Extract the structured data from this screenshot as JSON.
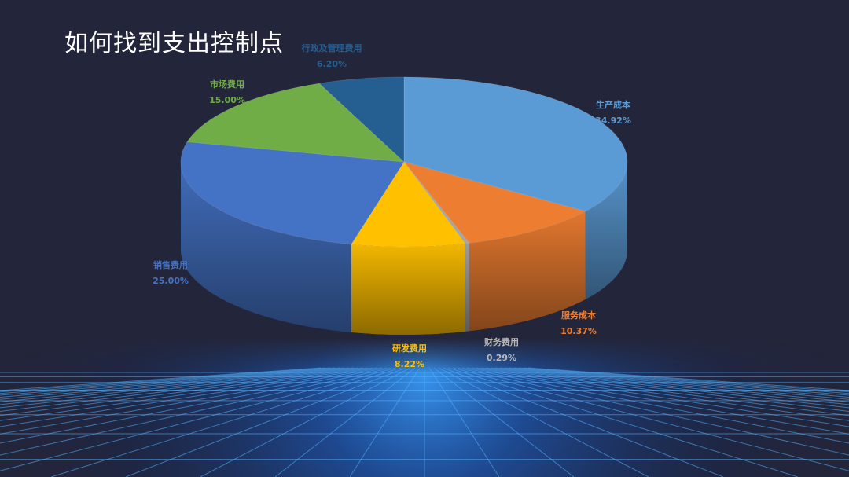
{
  "slide": {
    "title": "如何找到支出控制点"
  },
  "colors": {
    "background": "#23253a",
    "grid_glow": "#1e8bff"
  },
  "chart_data": {
    "type": "pie",
    "style": "3d",
    "slices": [
      {
        "label": "生产成本",
        "value": 34.92,
        "value_label": "34.92%",
        "color": "#5b9bd5"
      },
      {
        "label": "服务成本",
        "value": 10.37,
        "value_label": "10.37%",
        "color": "#ed7d31"
      },
      {
        "label": "财务费用",
        "value": 0.29,
        "value_label": "0.29%",
        "color": "#a5a5a5"
      },
      {
        "label": "研发费用",
        "value": 8.22,
        "value_label": "8.22%",
        "color": "#ffc000"
      },
      {
        "label": "销售费用",
        "value": 25.0,
        "value_label": "25.00%",
        "color": "#4472c4"
      },
      {
        "label": "市场费用",
        "value": 15.0,
        "value_label": "15.00%",
        "color": "#70ad47"
      },
      {
        "label": "行政及管理费用",
        "value": 6.2,
        "value_label": "6.20%",
        "color": "#255e91"
      }
    ]
  }
}
